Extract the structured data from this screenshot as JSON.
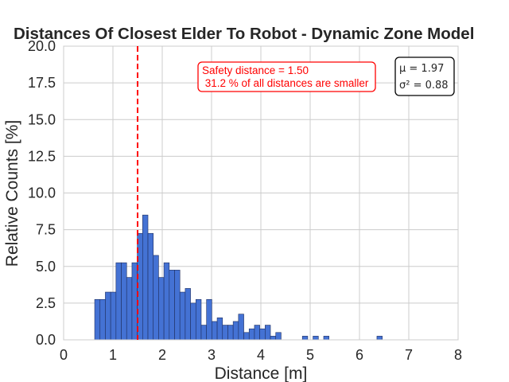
{
  "chart_data": {
    "type": "bar",
    "title": "Distances Of Closest Elder To Robot - Dynamic Zone Model",
    "xlabel": "Distance [m]",
    "ylabel": "Relative Counts [%]",
    "xlim": [
      0,
      8
    ],
    "ylim": [
      0,
      20
    ],
    "xticks": [
      "0",
      "1",
      "2",
      "3",
      "4",
      "5",
      "6",
      "7",
      "8"
    ],
    "yticks": [
      "0.0",
      "2.5",
      "5.0",
      "7.5",
      "10.0",
      "12.5",
      "15.0",
      "17.5",
      "20.0"
    ],
    "grid": true,
    "bar_color": "#4472d4",
    "bin_width": 0.108,
    "bins": [
      {
        "x": 0.63,
        "value": 2.75
      },
      {
        "x": 0.738,
        "value": 2.75
      },
      {
        "x": 0.846,
        "value": 3.25
      },
      {
        "x": 0.954,
        "value": 3.25
      },
      {
        "x": 1.062,
        "value": 5.25
      },
      {
        "x": 1.17,
        "value": 5.25
      },
      {
        "x": 1.278,
        "value": 4.25
      },
      {
        "x": 1.386,
        "value": 5.25
      },
      {
        "x": 1.494,
        "value": 7.25
      },
      {
        "x": 1.602,
        "value": 8.5
      },
      {
        "x": 1.71,
        "value": 7.25
      },
      {
        "x": 1.818,
        "value": 5.75
      },
      {
        "x": 1.926,
        "value": 4.25
      },
      {
        "x": 2.034,
        "value": 5.25
      },
      {
        "x": 2.142,
        "value": 4.75
      },
      {
        "x": 2.25,
        "value": 4.75
      },
      {
        "x": 2.358,
        "value": 3.25
      },
      {
        "x": 2.466,
        "value": 3.5
      },
      {
        "x": 2.574,
        "value": 2.5
      },
      {
        "x": 2.682,
        "value": 2.75
      },
      {
        "x": 2.79,
        "value": 1.0
      },
      {
        "x": 2.898,
        "value": 2.75
      },
      {
        "x": 3.006,
        "value": 1.25
      },
      {
        "x": 3.114,
        "value": 1.5
      },
      {
        "x": 3.222,
        "value": 1.0
      },
      {
        "x": 3.33,
        "value": 1.0
      },
      {
        "x": 3.438,
        "value": 1.25
      },
      {
        "x": 3.546,
        "value": 1.75
      },
      {
        "x": 3.654,
        "value": 0.5
      },
      {
        "x": 3.762,
        "value": 0.75
      },
      {
        "x": 3.87,
        "value": 1.0
      },
      {
        "x": 3.978,
        "value": 0.75
      },
      {
        "x": 4.086,
        "value": 1.0
      },
      {
        "x": 4.194,
        "value": 0.25
      },
      {
        "x": 4.302,
        "value": 0.5
      },
      {
        "x": 4.842,
        "value": 0.25
      },
      {
        "x": 5.058,
        "value": 0.25
      },
      {
        "x": 5.274,
        "value": 0.25
      },
      {
        "x": 6.354,
        "value": 0.25
      }
    ],
    "safety_line": {
      "x": 1.5,
      "color": "#ff0000"
    },
    "annotations": {
      "safety_line1": "Safety distance = 1.50",
      "safety_line2": " 31.2 % of all distances are smaller",
      "mu_label": "μ = 1.97",
      "sigma_label": "σ² = 0.88"
    }
  }
}
